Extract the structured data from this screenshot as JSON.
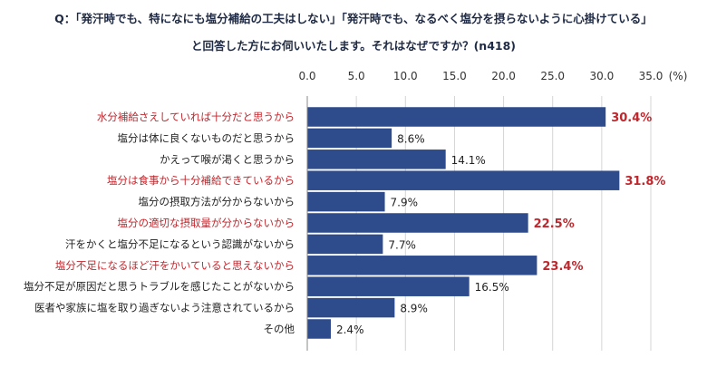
{
  "question": {
    "line1": "Q：「発汗時でも、特になにも塩分補給の工夫はしない」「発汗時でも、なるべく塩分を摂らないように心掛けている」",
    "line2": "と回答した方にお伺いいたします。それはなぜですか？(n418)"
  },
  "colors": {
    "bar": "#2e4b8c",
    "highlight_text": "#c0272d",
    "normal_text": "#222222",
    "grid": "#d4d4d4"
  },
  "chart_data": {
    "type": "bar",
    "orientation": "horizontal",
    "title": "",
    "xlabel": "",
    "ylabel": "",
    "unit": "(%)",
    "xlim": [
      0,
      35
    ],
    "x_ticks": [
      "0.0",
      "5.0",
      "10.0",
      "15.0",
      "20.0",
      "25.0",
      "30.0",
      "35.0"
    ],
    "grid": true,
    "categories": [
      "水分補給さえしていれば十分だと思うから",
      "塩分は体に良くないものだと思うから",
      "かえって喉が渇くと思うから",
      "塩分は食事から十分補給できているから",
      "塩分の摂取方法が分からないから",
      "塩分の適切な摂取量が分からないから",
      "汗をかくと塩分不足になるという認識がないから",
      "塩分不足になるほど汗をかいていると思えないから",
      "塩分不足が原因だと思うトラブルを感じたことがないから",
      "医者や家族に塩を取り過ぎないよう注意されているから",
      "その他"
    ],
    "values": [
      30.4,
      8.6,
      14.1,
      31.8,
      7.9,
      22.5,
      7.7,
      23.4,
      16.5,
      8.9,
      2.4
    ],
    "value_labels": [
      "30.4%",
      "8.6%",
      "14.1%",
      "31.8%",
      "7.9%",
      "22.5%",
      "7.7%",
      "23.4%",
      "16.5%",
      "8.9%",
      "2.4%"
    ],
    "highlighted": [
      true,
      false,
      false,
      true,
      false,
      true,
      false,
      true,
      false,
      false,
      false
    ]
  }
}
